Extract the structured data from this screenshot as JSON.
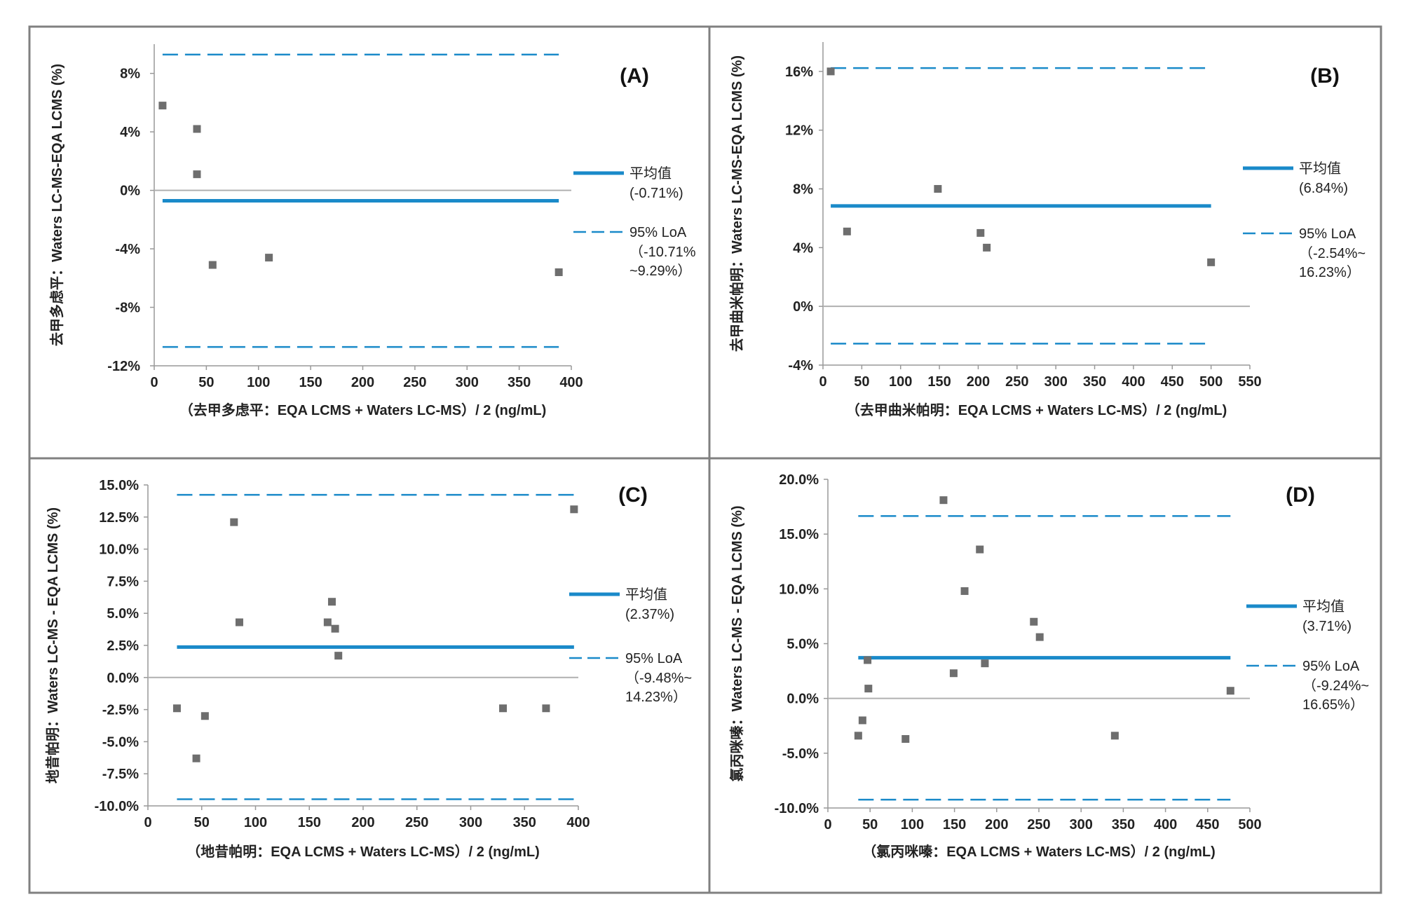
{
  "colors": {
    "mean_line": "#1a8ac9",
    "loa_line": "#1a8ac9",
    "zero_line": "#b0b0b0",
    "marker": "#6e6e6e",
    "frame": "#808080",
    "axis": "#999999"
  },
  "chart_data": [
    {
      "type": "scatter",
      "panel": "(A)",
      "xlabel": "（去甲多虑平：EQA LCMS + Waters LC-MS）/ 2 (ng/mL)",
      "ylabel": "去甲多虑平：Waters LC-MS-EQA LCMS (%)",
      "xlim": [
        0,
        400
      ],
      "ylim": [
        -12,
        10
      ],
      "x_ticks": [
        0,
        50,
        100,
        150,
        200,
        250,
        300,
        350,
        400
      ],
      "y_ticks": [
        -12,
        -8,
        -4,
        0,
        4,
        8
      ],
      "y_tick_labels": [
        "-12%",
        "-8%",
        "-4%",
        "0%",
        "4%",
        "8%"
      ],
      "points": [
        {
          "x": 8,
          "y": 5.8
        },
        {
          "x": 41,
          "y": 4.2
        },
        {
          "x": 41,
          "y": 1.1
        },
        {
          "x": 56,
          "y": -5.1
        },
        {
          "x": 110,
          "y": -4.6
        },
        {
          "x": 388,
          "y": -5.6
        }
      ],
      "mean": -0.71,
      "loa": [
        -10.71,
        9.29
      ],
      "lines_x_range": [
        8,
        388
      ],
      "legend": {
        "mean_label": "平均值",
        "mean_value": "(-0.71%)",
        "loa_label": "95% LoA",
        "loa_lines": [
          "（-10.71%",
          "~9.29%）"
        ]
      }
    },
    {
      "type": "scatter",
      "panel": "(B)",
      "xlabel": "（去甲曲米帕明：EQA LCMS + Waters LC-MS）/ 2 (ng/mL)",
      "ylabel": "去甲曲米帕明：Waters LC-MS-EQA LCMS (%)",
      "xlim": [
        0,
        550
      ],
      "ylim": [
        -4,
        18
      ],
      "x_ticks": [
        0,
        50,
        100,
        150,
        200,
        250,
        300,
        350,
        400,
        450,
        500,
        550
      ],
      "y_ticks": [
        -4,
        0,
        4,
        8,
        12,
        16
      ],
      "y_tick_labels": [
        "-4%",
        "0%",
        "4%",
        "8%",
        "12%",
        "16%"
      ],
      "points": [
        {
          "x": 10,
          "y": 16.0
        },
        {
          "x": 31,
          "y": 5.1
        },
        {
          "x": 148,
          "y": 8.0
        },
        {
          "x": 203,
          "y": 5.0
        },
        {
          "x": 211,
          "y": 4.0
        },
        {
          "x": 500,
          "y": 3.0
        }
      ],
      "mean": 6.84,
      "loa": [
        -2.54,
        16.23
      ],
      "lines_x_range": [
        10,
        500
      ],
      "legend": {
        "mean_label": "平均值",
        "mean_value": "(6.84%)",
        "loa_label": "95% LoA",
        "loa_lines": [
          "（-2.54%~",
          "16.23%）"
        ]
      }
    },
    {
      "type": "scatter",
      "panel": "(C)",
      "xlabel": "（地昔帕明：EQA LCMS + Waters LC-MS）/ 2 (ng/mL)",
      "ylabel": "地昔帕明：Waters LC-MS - EQA LCMS (%)",
      "xlim": [
        0,
        400
      ],
      "ylim": [
        -10,
        15
      ],
      "x_ticks": [
        0,
        50,
        100,
        150,
        200,
        250,
        300,
        350,
        400
      ],
      "y_ticks": [
        -10,
        -7.5,
        -5,
        -2.5,
        0,
        2.5,
        5,
        7.5,
        10,
        12.5,
        15
      ],
      "y_tick_labels": [
        "-10.0%",
        "-7.5%",
        "-5.0%",
        "-2.5%",
        "0.0%",
        "2.5%",
        "5.0%",
        "7.5%",
        "10.0%",
        "12.5%",
        "15.0%"
      ],
      "points": [
        {
          "x": 27,
          "y": -2.4
        },
        {
          "x": 45,
          "y": -6.3
        },
        {
          "x": 53,
          "y": -3.0
        },
        {
          "x": 80,
          "y": 12.1
        },
        {
          "x": 85,
          "y": 4.3
        },
        {
          "x": 167,
          "y": 4.3
        },
        {
          "x": 171,
          "y": 5.9
        },
        {
          "x": 174,
          "y": 3.8
        },
        {
          "x": 177,
          "y": 1.7
        },
        {
          "x": 330,
          "y": -2.4
        },
        {
          "x": 370,
          "y": -2.4
        },
        {
          "x": 396,
          "y": 13.1
        }
      ],
      "mean": 2.37,
      "loa": [
        -9.48,
        14.23
      ],
      "lines_x_range": [
        27,
        396
      ],
      "legend": {
        "mean_label": "平均值",
        "mean_value": "(2.37%)",
        "loa_label": "95% LoA",
        "loa_lines": [
          "（-9.48%~",
          "14.23%）"
        ]
      }
    },
    {
      "type": "scatter",
      "panel": "(D)",
      "xlabel": "（氯丙咪嗪：EQA LCMS + Waters LC-MS）/ 2 (ng/mL)",
      "ylabel": "氯丙咪嗪：Waters LC-MS - EQA LCMS (%)",
      "xlim": [
        0,
        500
      ],
      "ylim": [
        -10,
        20
      ],
      "x_ticks": [
        0,
        50,
        100,
        150,
        200,
        250,
        300,
        350,
        400,
        450,
        500
      ],
      "y_ticks": [
        -10,
        -5,
        0,
        5,
        10,
        15,
        20
      ],
      "y_tick_labels": [
        "-10.0%",
        "-5.0%",
        "0.0%",
        "5.0%",
        "10.0%",
        "15.0%",
        "20.0%"
      ],
      "points": [
        {
          "x": 36,
          "y": -3.4
        },
        {
          "x": 41,
          "y": -2.0
        },
        {
          "x": 47,
          "y": 3.5
        },
        {
          "x": 48,
          "y": 0.9
        },
        {
          "x": 92,
          "y": -3.7
        },
        {
          "x": 137,
          "y": 18.1
        },
        {
          "x": 149,
          "y": 2.3
        },
        {
          "x": 162,
          "y": 9.8
        },
        {
          "x": 180,
          "y": 13.6
        },
        {
          "x": 186,
          "y": 3.2
        },
        {
          "x": 244,
          "y": 7.0
        },
        {
          "x": 251,
          "y": 5.6
        },
        {
          "x": 340,
          "y": -3.4
        },
        {
          "x": 477,
          "y": 0.7
        }
      ],
      "mean": 3.71,
      "loa": [
        -9.24,
        16.65
      ],
      "lines_x_range": [
        36,
        477
      ],
      "legend": {
        "mean_label": "平均值",
        "mean_value": "(3.71%)",
        "loa_label": "95% LoA",
        "loa_lines": [
          "（-9.24%~",
          "16.65%）"
        ]
      }
    }
  ]
}
